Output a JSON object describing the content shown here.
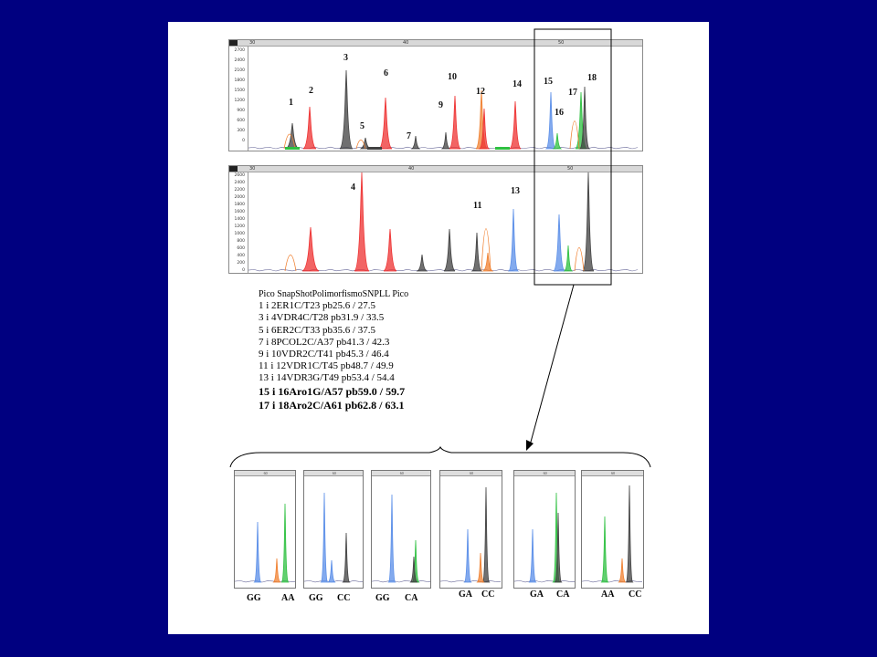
{
  "panel_top": {
    "y_ticks": [
      "2700",
      "2400",
      "2100",
      "1800",
      "1500",
      "1200",
      "900",
      "600",
      "300",
      "0"
    ],
    "x_ticks": [
      "30",
      "40",
      "50"
    ],
    "peak_labels": [
      "1",
      "2",
      "3",
      "5",
      "6",
      "7",
      "9",
      "10",
      "12",
      "14",
      "15",
      "16",
      "17",
      "18"
    ]
  },
  "panel_bottom": {
    "y_ticks": [
      "2600",
      "2400",
      "2200",
      "2000",
      "1800",
      "1600",
      "1400",
      "1200",
      "1000",
      "800",
      "600",
      "400",
      "200",
      "0"
    ],
    "x_ticks": [
      "30",
      "40",
      "50"
    ],
    "peak_labels": [
      "4",
      "11",
      "13"
    ]
  },
  "legend": {
    "header": "Pico SnapShotPolimorfismoSNPLL Pico",
    "lines": [
      "1 i 2ER1C/T23 pb25.6 / 27.5",
      "3 i 4VDR4C/T28 pb31.9 / 33.5",
      "5 i 6ER2C/T33 pb35.6 / 37.5",
      "7 i 8PCOL2C/A37 pb41.3 / 42.3",
      "9 i 10VDR2C/T41 pb45.3 / 46.4",
      "11 i 12VDR1C/T45 pb48.7 / 49.9",
      "13 i 14VDR3G/T49 pb53.4 / 54.4"
    ],
    "bold_lines": [
      "15 i 16Aro1G/A57 pb59.0 / 59.7",
      "17 i 18Aro2C/A61 pb62.8 / 63.1"
    ]
  },
  "genotypes": [
    {
      "a": "GG",
      "b": "AA"
    },
    {
      "a": "GG",
      "b": "CC"
    },
    {
      "a": "GG",
      "b": "CA"
    },
    {
      "a": "GA",
      "b": "CC"
    },
    {
      "a": "GA",
      "b": "CA"
    },
    {
      "a": "AA",
      "b": "CC"
    }
  ],
  "mini_axis_tick": "60",
  "colors": {
    "background": "#000080",
    "red": "#ee3030",
    "black": "#404040",
    "blue": "#5a8ee8",
    "green": "#2ec040",
    "orange": "#f08030"
  }
}
